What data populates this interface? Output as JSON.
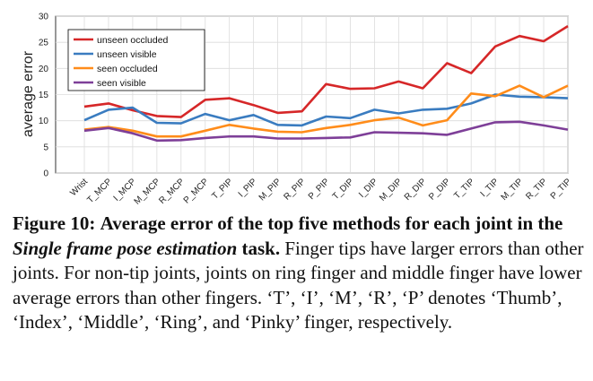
{
  "chart_data": {
    "type": "line",
    "title": "",
    "xlabel": "",
    "ylabel": "average error",
    "ylim": [
      0,
      30
    ],
    "yticks": [
      0,
      5,
      10,
      15,
      20,
      25,
      30
    ],
    "grid": true,
    "legend_position": "top-left",
    "categories": [
      "Wrist",
      "T_MCP",
      "I_MCP",
      "M_MCP",
      "R_MCP",
      "P_MCP",
      "T_PIP",
      "I_PIP",
      "M_PIP",
      "R_PIP",
      "P_PIP",
      "T_DIP",
      "I_DIP",
      "M_DIP",
      "R_DIP",
      "P_DIP",
      "T_TIP",
      "I_TIP",
      "M_TIP",
      "R_TIP",
      "P_TIP"
    ],
    "series": [
      {
        "name": "unseen occluded",
        "color": "#d62728",
        "values": [
          12.7,
          13.3,
          12.0,
          10.9,
          10.7,
          14.0,
          14.3,
          13.0,
          11.5,
          11.8,
          17.0,
          16.1,
          16.2,
          17.5,
          16.2,
          21.0,
          19.1,
          24.2,
          26.2,
          25.2,
          28.1
        ]
      },
      {
        "name": "unseen visible",
        "color": "#3a7cc0",
        "values": [
          10.1,
          12.1,
          12.5,
          9.6,
          9.5,
          11.3,
          10.1,
          11.1,
          9.2,
          9.1,
          10.8,
          10.5,
          12.1,
          11.4,
          12.1,
          12.3,
          13.3,
          15.0,
          14.6,
          14.5,
          14.3
        ]
      },
      {
        "name": "seen occluded",
        "color": "#ff8c1a",
        "values": [
          8.3,
          8.8,
          8.1,
          7.0,
          7.0,
          8.1,
          9.2,
          8.5,
          7.9,
          7.8,
          8.6,
          9.2,
          10.1,
          10.6,
          9.1,
          10.1,
          15.2,
          14.7,
          16.7,
          14.5,
          16.7
        ]
      },
      {
        "name": "seen visible",
        "color": "#7e3f98",
        "values": [
          8.1,
          8.6,
          7.6,
          6.2,
          6.3,
          6.7,
          7.0,
          7.0,
          6.6,
          6.6,
          6.7,
          6.8,
          7.8,
          7.7,
          7.6,
          7.3,
          8.5,
          9.7,
          9.8,
          9.1,
          8.3
        ]
      }
    ]
  },
  "caption": {
    "label": "Figure 10:",
    "bold_text": "Average error of the top five methods for each joint in the",
    "italic_text": "Single frame pose estimation",
    "bold_text2": "task.",
    "body": "Finger tips have larger errors than other joints.  For non-tip joints, joints on ring finger and middle finger have lower average errors than other fingers. ‘T’, ‘I’, ‘M’, ‘R’, ‘P’ denotes ‘Thumb’, ‘Index’, ‘Middle’, ‘Ring’, and ‘Pinky’ finger, respectively."
  }
}
